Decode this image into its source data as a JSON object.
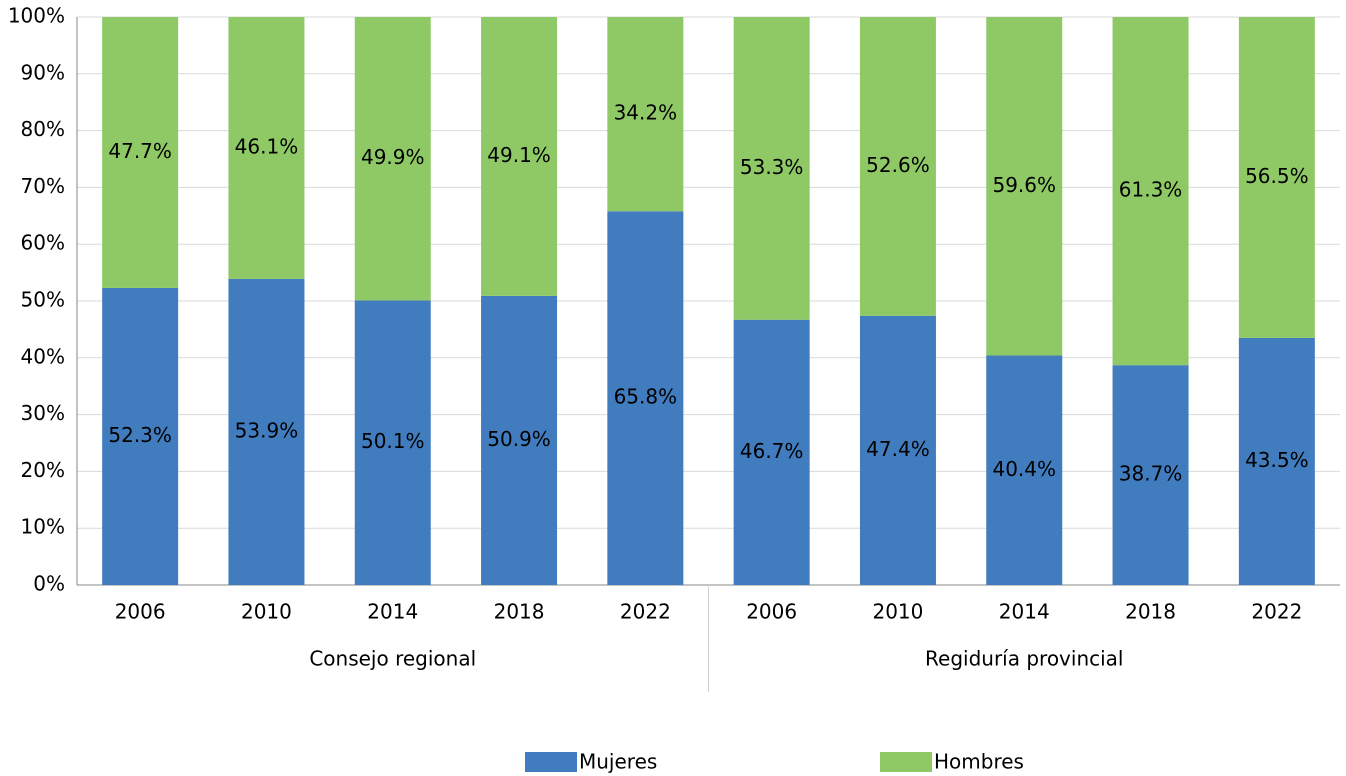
{
  "chart_data": {
    "type": "stacked_bar",
    "groups": [
      {
        "name": "Consejo regional",
        "categories": [
          "2006",
          "2010",
          "2014",
          "2018",
          "2022"
        ]
      },
      {
        "name": "Regiduría provincial",
        "categories": [
          "2006",
          "2010",
          "2014",
          "2018",
          "2022"
        ]
      }
    ],
    "series": [
      {
        "name": "Mujeres",
        "color": "#417cbf",
        "values": [
          52.3,
          53.9,
          50.1,
          50.9,
          65.8,
          46.7,
          47.4,
          40.4,
          38.7,
          43.5
        ],
        "value_labels": [
          "52.3%",
          "53.9%",
          "50.1%",
          "50.9%",
          "65.8%",
          "46.7%",
          "47.4%",
          "40.4%",
          "38.7%",
          "43.5%"
        ]
      },
      {
        "name": "Hombres",
        "color": "#8ec966",
        "values": [
          47.7,
          46.1,
          49.9,
          49.1,
          34.2,
          53.3,
          52.6,
          59.6,
          61.3,
          56.5
        ],
        "value_labels": [
          "47.7%",
          "46.1%",
          "49.9%",
          "49.1%",
          "34.2%",
          "53.3%",
          "52.6%",
          "59.6%",
          "61.3%",
          "56.5%"
        ]
      }
    ],
    "ylim": [
      0,
      100
    ],
    "yticks": [
      {
        "value": 0,
        "label": "0%"
      },
      {
        "value": 10,
        "label": "10%"
      },
      {
        "value": 20,
        "label": "20%"
      },
      {
        "value": 30,
        "label": "30%"
      },
      {
        "value": 40,
        "label": "40%"
      },
      {
        "value": 50,
        "label": "50%"
      },
      {
        "value": 60,
        "label": "60%"
      },
      {
        "value": 70,
        "label": "70%"
      },
      {
        "value": 80,
        "label": "80%"
      },
      {
        "value": 90,
        "label": "90%"
      },
      {
        "value": 100,
        "label": "100%"
      }
    ],
    "grid": true,
    "legend": "bottom"
  }
}
